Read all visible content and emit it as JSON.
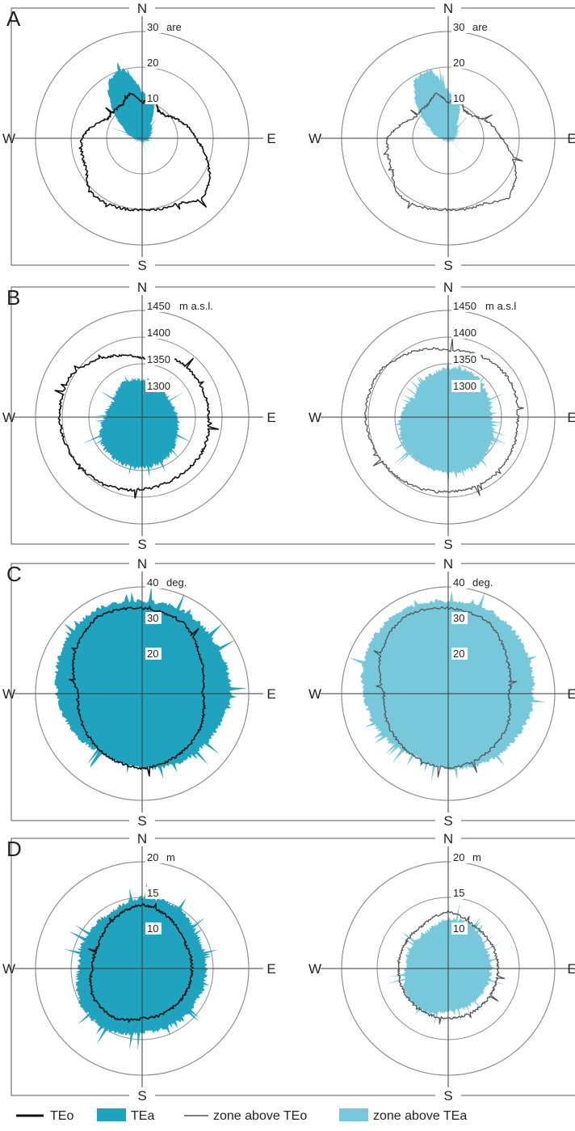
{
  "colors": {
    "tea_dark": "#1fa3bf",
    "tea_light": "#78c8dc",
    "line_black": "#111111",
    "line_gray": "#555555",
    "ring": "#8c8c8c"
  },
  "compass": {
    "n": "N",
    "e": "E",
    "s": "S",
    "w": "W"
  },
  "legend": [
    {
      "label": "TEo",
      "kind": "line-thick"
    },
    {
      "label": "TEa",
      "kind": "fill-dark"
    },
    {
      "label": "zone above TEo",
      "kind": "line-thin"
    },
    {
      "label": "zone above TEa",
      "kind": "fill-light"
    }
  ],
  "chart_data": [
    {
      "panel": "A",
      "type": "polar-area",
      "unit": "are",
      "rings": [
        {
          "value": 10,
          "label": "10"
        },
        {
          "value": 20,
          "label": "20"
        },
        {
          "value": 30,
          "label": "30"
        }
      ],
      "rmax": 30,
      "left": {
        "fill_profile": [
          [
            0,
            13
          ],
          [
            15,
            12
          ],
          [
            30,
            5
          ],
          [
            45,
            4
          ],
          [
            60,
            3
          ],
          [
            90,
            2
          ],
          [
            135,
            1
          ],
          [
            180,
            1
          ],
          [
            225,
            1
          ],
          [
            270,
            2
          ],
          [
            300,
            6
          ],
          [
            315,
            12
          ],
          [
            330,
            19
          ],
          [
            345,
            20
          ],
          [
            360,
            13
          ]
        ],
        "line_profile": [
          [
            0,
            10
          ],
          [
            15,
            12
          ],
          [
            30,
            9
          ],
          [
            45,
            9
          ],
          [
            60,
            11
          ],
          [
            90,
            15
          ],
          [
            120,
            22
          ],
          [
            135,
            24
          ],
          [
            150,
            21
          ],
          [
            180,
            20
          ],
          [
            210,
            21
          ],
          [
            225,
            21
          ],
          [
            240,
            18
          ],
          [
            270,
            17
          ],
          [
            300,
            11
          ],
          [
            330,
            11
          ],
          [
            345,
            13
          ],
          [
            360,
            10
          ]
        ]
      },
      "right": {
        "fill_profile": [
          [
            0,
            13
          ],
          [
            15,
            12
          ],
          [
            30,
            5
          ],
          [
            45,
            4
          ],
          [
            60,
            3
          ],
          [
            90,
            2
          ],
          [
            135,
            1
          ],
          [
            180,
            1
          ],
          [
            225,
            1
          ],
          [
            270,
            2
          ],
          [
            300,
            6
          ],
          [
            315,
            12
          ],
          [
            330,
            19
          ],
          [
            345,
            20
          ],
          [
            360,
            13
          ]
        ],
        "line_profile": [
          [
            0,
            10
          ],
          [
            15,
            12
          ],
          [
            30,
            9
          ],
          [
            45,
            9
          ],
          [
            60,
            11
          ],
          [
            90,
            15
          ],
          [
            120,
            22
          ],
          [
            135,
            24
          ],
          [
            150,
            21
          ],
          [
            180,
            20
          ],
          [
            210,
            21
          ],
          [
            225,
            21
          ],
          [
            240,
            18
          ],
          [
            270,
            17
          ],
          [
            300,
            11
          ],
          [
            330,
            11
          ],
          [
            345,
            13
          ],
          [
            360,
            10
          ]
        ]
      }
    },
    {
      "panel": "B",
      "type": "polar-area",
      "unit": "m a.s.l.",
      "unit_right": "m a.s.l",
      "rings": [
        {
          "value": 1300,
          "label": "1300"
        },
        {
          "value": 1350,
          "label": "1350"
        },
        {
          "value": 1400,
          "label": "1400"
        },
        {
          "value": 1450,
          "label": "1450"
        }
      ],
      "rmin": 1250,
      "rmax": 1450,
      "left": {
        "fill_profile": [
          [
            0,
            1320
          ],
          [
            30,
            1320
          ],
          [
            60,
            1310
          ],
          [
            90,
            1315
          ],
          [
            120,
            1325
          ],
          [
            150,
            1340
          ],
          [
            180,
            1345
          ],
          [
            210,
            1345
          ],
          [
            240,
            1340
          ],
          [
            270,
            1320
          ],
          [
            300,
            1312
          ],
          [
            330,
            1325
          ],
          [
            360,
            1320
          ]
        ],
        "line_profile": [
          [
            0,
            1360
          ],
          [
            30,
            1375
          ],
          [
            60,
            1375
          ],
          [
            90,
            1375
          ],
          [
            120,
            1380
          ],
          [
            150,
            1380
          ],
          [
            180,
            1385
          ],
          [
            210,
            1395
          ],
          [
            240,
            1400
          ],
          [
            270,
            1405
          ],
          [
            300,
            1405
          ],
          [
            330,
            1380
          ],
          [
            360,
            1360
          ]
        ]
      },
      "right": {
        "fill_profile": [
          [
            0,
            1342
          ],
          [
            30,
            1345
          ],
          [
            60,
            1335
          ],
          [
            90,
            1330
          ],
          [
            120,
            1345
          ],
          [
            150,
            1355
          ],
          [
            180,
            1355
          ],
          [
            210,
            1350
          ],
          [
            240,
            1350
          ],
          [
            270,
            1340
          ],
          [
            300,
            1325
          ],
          [
            330,
            1335
          ],
          [
            360,
            1342
          ]
        ],
        "line_profile": [
          [
            0,
            1375
          ],
          [
            30,
            1380
          ],
          [
            60,
            1385
          ],
          [
            90,
            1380
          ],
          [
            120,
            1385
          ],
          [
            150,
            1390
          ],
          [
            180,
            1390
          ],
          [
            210,
            1395
          ],
          [
            240,
            1400
          ],
          [
            270,
            1405
          ],
          [
            300,
            1405
          ],
          [
            330,
            1390
          ],
          [
            360,
            1375
          ]
        ]
      }
    },
    {
      "panel": "C",
      "type": "polar-area",
      "unit": "deg.",
      "rings": [
        {
          "value": 20,
          "label": "20"
        },
        {
          "value": 30,
          "label": "30"
        },
        {
          "value": 40,
          "label": "40"
        }
      ],
      "rmin": 10,
      "rmax": 40,
      "left": {
        "fill_profile": [
          [
            0,
            36
          ],
          [
            30,
            36
          ],
          [
            60,
            35
          ],
          [
            90,
            35
          ],
          [
            120,
            33
          ],
          [
            150,
            32
          ],
          [
            180,
            31
          ],
          [
            210,
            30
          ],
          [
            240,
            32
          ],
          [
            270,
            34
          ],
          [
            300,
            36
          ],
          [
            330,
            37
          ],
          [
            360,
            36
          ]
        ],
        "line_profile": [
          [
            0,
            34
          ],
          [
            30,
            33
          ],
          [
            60,
            29
          ],
          [
            90,
            27
          ],
          [
            120,
            29
          ],
          [
            150,
            30
          ],
          [
            180,
            31
          ],
          [
            210,
            30
          ],
          [
            240,
            29
          ],
          [
            270,
            28
          ],
          [
            300,
            32
          ],
          [
            330,
            35
          ],
          [
            360,
            34
          ]
        ]
      },
      "right": {
        "fill_profile": [
          [
            0,
            36
          ],
          [
            30,
            36
          ],
          [
            60,
            35
          ],
          [
            90,
            34
          ],
          [
            120,
            33
          ],
          [
            150,
            32
          ],
          [
            180,
            31
          ],
          [
            210,
            30
          ],
          [
            240,
            32
          ],
          [
            270,
            34
          ],
          [
            300,
            36
          ],
          [
            330,
            37
          ],
          [
            360,
            36
          ]
        ],
        "line_profile": [
          [
            0,
            34
          ],
          [
            30,
            33
          ],
          [
            60,
            29
          ],
          [
            90,
            27
          ],
          [
            120,
            29
          ],
          [
            150,
            30
          ],
          [
            180,
            31
          ],
          [
            210,
            30
          ],
          [
            240,
            29
          ],
          [
            270,
            28
          ],
          [
            300,
            32
          ],
          [
            330,
            35
          ],
          [
            360,
            34
          ]
        ]
      }
    },
    {
      "panel": "D",
      "type": "polar-area",
      "unit": "m",
      "rings": [
        {
          "value": 10,
          "label": "10"
        },
        {
          "value": 15,
          "label": "15"
        },
        {
          "value": 20,
          "label": "20"
        }
      ],
      "rmin": 5,
      "rmax": 20,
      "left": {
        "fill_profile": [
          [
            0,
            15
          ],
          [
            30,
            15
          ],
          [
            60,
            14
          ],
          [
            90,
            14
          ],
          [
            120,
            14
          ],
          [
            150,
            14
          ],
          [
            180,
            14
          ],
          [
            210,
            15
          ],
          [
            240,
            15
          ],
          [
            270,
            14
          ],
          [
            300,
            14
          ],
          [
            330,
            14
          ],
          [
            360,
            15
          ]
        ],
        "line_profile": [
          [
            0,
            14
          ],
          [
            30,
            13
          ],
          [
            60,
            12
          ],
          [
            90,
            12
          ],
          [
            120,
            12
          ],
          [
            150,
            12
          ],
          [
            180,
            12
          ],
          [
            210,
            13
          ],
          [
            240,
            13
          ],
          [
            270,
            12
          ],
          [
            300,
            12
          ],
          [
            330,
            13
          ],
          [
            360,
            14
          ]
        ]
      },
      "right": {
        "fill_profile": [
          [
            0,
            12
          ],
          [
            30,
            12
          ],
          [
            60,
            11
          ],
          [
            90,
            11
          ],
          [
            120,
            11
          ],
          [
            150,
            11
          ],
          [
            180,
            11
          ],
          [
            210,
            12
          ],
          [
            240,
            12
          ],
          [
            270,
            11
          ],
          [
            300,
            11
          ],
          [
            330,
            11
          ],
          [
            360,
            12
          ]
        ],
        "line_profile": [
          [
            0,
            13
          ],
          [
            30,
            12
          ],
          [
            60,
            12
          ],
          [
            90,
            12
          ],
          [
            120,
            12
          ],
          [
            150,
            12
          ],
          [
            180,
            12
          ],
          [
            210,
            12
          ],
          [
            240,
            12
          ],
          [
            270,
            12
          ],
          [
            300,
            12
          ],
          [
            330,
            12
          ],
          [
            360,
            13
          ]
        ]
      }
    }
  ]
}
